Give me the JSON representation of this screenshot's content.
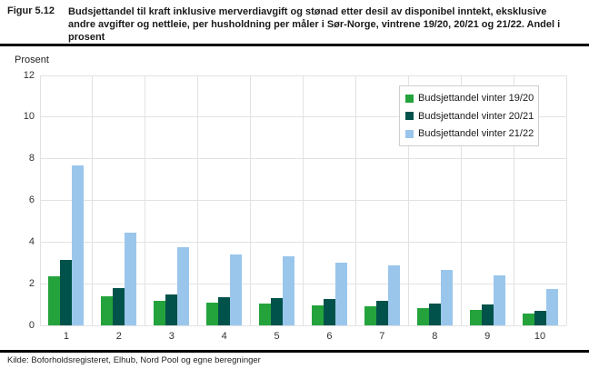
{
  "figure": {
    "label": "Figur 5.12",
    "title_lines": [
      "Budsjettandel til kraft inklusive merverdiavgift og stønad etter desil av disponibel inntekt, eksklusive",
      "andre avgifter og nettleie, per husholdning per måler i Sør-Norge, vintrene 19/20, 20/21 og 21/22. Andel i",
      "prosent"
    ]
  },
  "chart_data": {
    "type": "bar",
    "title": "Budsjettandel til kraft inklusive merverdiavgift og stønad etter desil av disponibel inntekt, eksklusive andre avgifter og nettleie, per husholdning per måler i Sør-Norge, vintrene 19/20, 20/21 og 21/22. Andel i prosent",
    "xlabel": "",
    "ylabel": "Prosent",
    "ylim": [
      0,
      12
    ],
    "yticks": [
      0,
      2,
      4,
      6,
      8,
      10,
      12
    ],
    "grid": true,
    "legend_position": "upper right",
    "categories": [
      "1",
      "2",
      "3",
      "4",
      "5",
      "6",
      "7",
      "8",
      "9",
      "10"
    ],
    "series": [
      {
        "name": "Budsjettandel vinter 19/20",
        "color": "#24a33c",
        "values": [
          2.35,
          1.4,
          1.2,
          1.1,
          1.05,
          0.95,
          0.9,
          0.85,
          0.75,
          0.55
        ]
      },
      {
        "name": "Budsjettandel vinter 20/21",
        "color": "#00524a",
        "values": [
          3.15,
          1.8,
          1.5,
          1.35,
          1.3,
          1.25,
          1.2,
          1.05,
          1.0,
          0.7
        ]
      },
      {
        "name": "Budsjettandel vinter 21/22",
        "color": "#9ac6ec",
        "values": [
          7.7,
          4.45,
          3.75,
          3.4,
          3.3,
          3.0,
          2.9,
          2.65,
          2.4,
          1.75
        ]
      }
    ]
  },
  "source": {
    "text": "Kilde: Boforholdsregisteret, Elhub, Nord Pool og egne beregninger"
  }
}
